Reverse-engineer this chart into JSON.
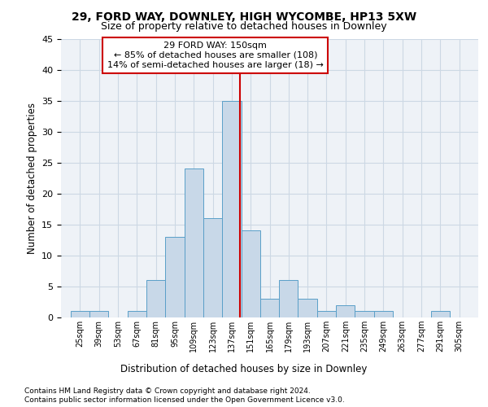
{
  "title1": "29, FORD WAY, DOWNLEY, HIGH WYCOMBE, HP13 5XW",
  "title2": "Size of property relative to detached houses in Downley",
  "xlabel": "Distribution of detached houses by size in Downley",
  "ylabel": "Number of detached properties",
  "bin_labels": [
    "25sqm",
    "39sqm",
    "53sqm",
    "67sqm",
    "81sqm",
    "95sqm",
    "109sqm",
    "123sqm",
    "137sqm",
    "151sqm",
    "165sqm",
    "179sqm",
    "193sqm",
    "207sqm",
    "221sqm",
    "235sqm",
    "249sqm",
    "263sqm",
    "277sqm",
    "291sqm",
    "305sqm"
  ],
  "bin_edges": [
    25,
    39,
    53,
    67,
    81,
    95,
    109,
    123,
    137,
    151,
    165,
    179,
    193,
    207,
    221,
    235,
    249,
    263,
    277,
    291,
    305
  ],
  "bar_heights": [
    1,
    1,
    0,
    1,
    6,
    13,
    24,
    16,
    35,
    14,
    3,
    6,
    3,
    1,
    2,
    1,
    1,
    0,
    0,
    1,
    0
  ],
  "bar_color": "#c8d8e8",
  "bar_edge_color": "#5a9fc8",
  "vline_x": 150,
  "vline_color": "#cc0000",
  "annotation_text": "29 FORD WAY: 150sqm\n← 85% of detached houses are smaller (108)\n14% of semi-detached houses are larger (18) →",
  "annotation_box_color": "#cc0000",
  "ylim": [
    0,
    45
  ],
  "yticks": [
    0,
    5,
    10,
    15,
    20,
    25,
    30,
    35,
    40,
    45
  ],
  "grid_color": "#ccd8e4",
  "background_color": "#eef2f7",
  "footer1": "Contains HM Land Registry data © Crown copyright and database right 2024.",
  "footer2": "Contains public sector information licensed under the Open Government Licence v3.0."
}
